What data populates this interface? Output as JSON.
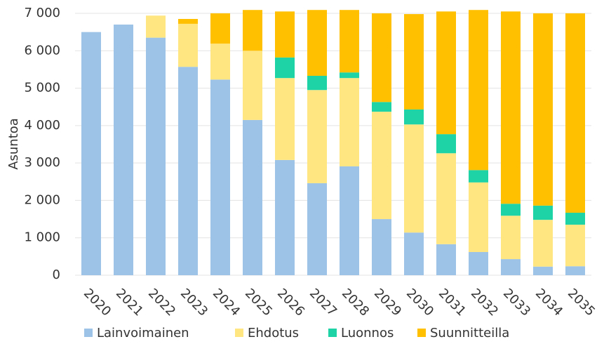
{
  "chart_data": {
    "type": "stacked-bar",
    "y_label": "Asuntoa",
    "categories": [
      "2020",
      "2021",
      "2022",
      "2023",
      "2024",
      "2025",
      "2026",
      "2027",
      "2028",
      "2029",
      "2030",
      "2031",
      "2032",
      "2033",
      "2034",
      "2035"
    ],
    "series": [
      {
        "name": "Lainvoimainen",
        "color": "#9dc3e6",
        "values": [
          6500,
          6700,
          6350,
          5570,
          5230,
          4150,
          3080,
          2460,
          2910,
          1500,
          1140,
          830,
          620,
          430,
          230,
          240
        ]
      },
      {
        "name": "Ehdotus",
        "color": "#ffe680",
        "values": [
          0,
          0,
          590,
          1150,
          960,
          1850,
          2190,
          2490,
          2360,
          2870,
          2890,
          2430,
          1860,
          1160,
          1250,
          1110
        ]
      },
      {
        "name": "Luonnos",
        "color": "#1ed3a6",
        "values": [
          0,
          0,
          0,
          0,
          0,
          0,
          550,
          380,
          150,
          260,
          400,
          510,
          330,
          320,
          380,
          320
        ]
      },
      {
        "name": "Suunnitteilla",
        "color": "#ffc000",
        "values": [
          0,
          0,
          0,
          130,
          810,
          1090,
          1230,
          1760,
          1670,
          2370,
          2550,
          3280,
          4280,
          5140,
          5140,
          5330
        ]
      }
    ],
    "ylim": [
      0,
      7000
    ],
    "yticks": [
      0,
      {
        "value": 1000,
        "label": "1 000"
      },
      {
        "value": 2000,
        "label": "2 000"
      },
      {
        "value": 3000,
        "label": "3 000"
      },
      {
        "value": 4000,
        "label": "4 000"
      },
      {
        "value": 5000,
        "label": "5 000"
      },
      {
        "value": 6000,
        "label": "6 000"
      },
      {
        "value": 7000,
        "label": "7 000"
      }
    ],
    "grid": true,
    "legend": "bottom"
  }
}
